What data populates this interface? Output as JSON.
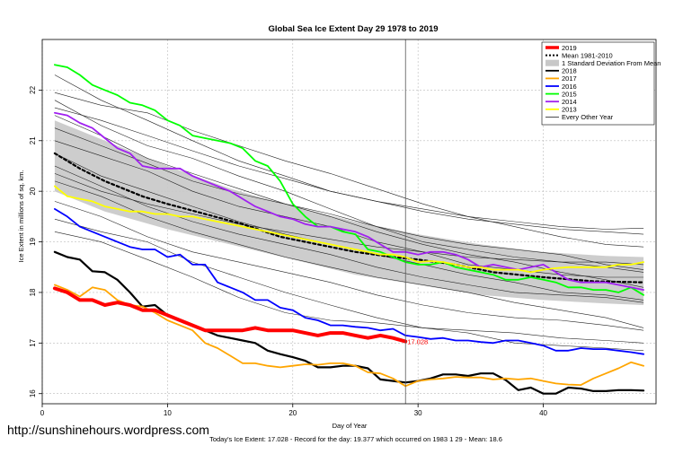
{
  "chart_data": {
    "type": "line",
    "title": "Global Sea Ice Extent Day 29 1978 to 2019",
    "xlabel": "Day of Year",
    "ylabel": "Ice Extent in millions of sq. km.",
    "xlim": [
      0,
      49
    ],
    "ylim": [
      15.8,
      23.0
    ],
    "x_ticks": [
      0,
      10,
      20,
      30,
      40
    ],
    "y_ticks": [
      16,
      17,
      18,
      19,
      20,
      21,
      22
    ],
    "grid": true,
    "legend_position": "top-right",
    "marker_day": 29,
    "current_value_label": "17.028",
    "footer": "Today's Ice Extent: 17.028  - Record for the day: 19.377 which occurred on 1983 1 29  - Mean: 18.6",
    "watermark": "http://sunshinehours.wordpress.com",
    "legend": [
      {
        "label": "2019",
        "color": "#ff0000",
        "style": "thick"
      },
      {
        "label": "Mean 1981-2010",
        "color": "#000000",
        "style": "dotted"
      },
      {
        "label": "1 Standard Deviation From Mean",
        "color": "#c8c8c8",
        "style": "box"
      },
      {
        "label": "2018",
        "color": "#000000",
        "style": "line"
      },
      {
        "label": "2017",
        "color": "#ffa500",
        "style": "line"
      },
      {
        "label": "2016",
        "color": "#0000ff",
        "style": "line"
      },
      {
        "label": "2015",
        "color": "#00ff00",
        "style": "line"
      },
      {
        "label": "2014",
        "color": "#a020f0",
        "style": "line"
      },
      {
        "label": "2013",
        "color": "#ffff00",
        "style": "line"
      },
      {
        "label": "Every Other Year",
        "color": "#000000",
        "style": "thin"
      }
    ],
    "band": {
      "name": "1 Standard Deviation From Mean",
      "x": [
        1,
        5,
        10,
        15,
        20,
        25,
        30,
        35,
        40,
        45,
        48
      ],
      "upper": [
        21.4,
        21.0,
        20.5,
        20.05,
        19.7,
        19.4,
        19.15,
        18.95,
        18.8,
        18.72,
        18.7
      ],
      "lower": [
        20.0,
        19.6,
        19.25,
        18.95,
        18.65,
        18.35,
        18.15,
        17.95,
        17.85,
        17.78,
        17.75
      ]
    },
    "series": [
      {
        "name": "Mean 1981-2010",
        "color": "#000000",
        "width": 2.2,
        "dash": "3,3",
        "x": [
          1,
          3,
          5,
          8,
          10,
          13,
          16,
          19,
          22,
          25,
          28,
          30,
          33,
          36,
          40,
          44,
          48
        ],
        "y": [
          20.75,
          20.45,
          20.2,
          19.9,
          19.75,
          19.55,
          19.35,
          19.1,
          18.95,
          18.8,
          18.7,
          18.65,
          18.55,
          18.4,
          18.3,
          18.22,
          18.2
        ]
      },
      {
        "name": "2018",
        "color": "#000000",
        "width": 2.2,
        "x": [
          1,
          2,
          3,
          4,
          5,
          6,
          7,
          8,
          9,
          10,
          11,
          12,
          13,
          14,
          15,
          16,
          17,
          18,
          19,
          20,
          21,
          22,
          23,
          24,
          25,
          26,
          27,
          28,
          29,
          30,
          31,
          32,
          33,
          34,
          35,
          36,
          37,
          38,
          39,
          40,
          41,
          42,
          43,
          44,
          45,
          46,
          47,
          48
        ],
        "y": [
          18.8,
          18.7,
          18.65,
          18.42,
          18.4,
          18.25,
          18.0,
          17.72,
          17.75,
          17.55,
          17.45,
          17.35,
          17.25,
          17.15,
          17.1,
          17.05,
          17.0,
          16.85,
          16.78,
          16.72,
          16.65,
          16.52,
          16.52,
          16.55,
          16.55,
          16.5,
          16.28,
          16.25,
          16.22,
          16.25,
          16.3,
          16.38,
          16.38,
          16.35,
          16.4,
          16.4,
          16.27,
          16.07,
          16.12,
          16.0,
          16.0,
          16.12,
          16.1,
          16.05,
          16.05,
          16.07,
          16.07,
          16.06
        ]
      },
      {
        "name": "2017",
        "color": "#ffa500",
        "width": 1.8,
        "x": [
          1,
          2,
          3,
          4,
          5,
          6,
          7,
          8,
          9,
          10,
          11,
          12,
          13,
          14,
          15,
          16,
          17,
          18,
          19,
          20,
          21,
          22,
          23,
          24,
          25,
          26,
          27,
          28,
          29,
          30,
          31,
          32,
          33,
          34,
          35,
          36,
          37,
          38,
          39,
          40,
          41,
          42,
          43,
          44,
          45,
          46,
          47,
          48
        ],
        "y": [
          18.15,
          18.05,
          17.92,
          18.1,
          18.05,
          17.85,
          17.75,
          17.72,
          17.6,
          17.45,
          17.35,
          17.25,
          17.0,
          16.9,
          16.75,
          16.6,
          16.6,
          16.55,
          16.52,
          16.55,
          16.58,
          16.57,
          16.6,
          16.6,
          16.55,
          16.42,
          16.4,
          16.3,
          16.15,
          16.25,
          16.28,
          16.3,
          16.33,
          16.32,
          16.32,
          16.28,
          16.3,
          16.28,
          16.3,
          16.25,
          16.2,
          16.18,
          16.17,
          16.3,
          16.4,
          16.5,
          16.62,
          16.55
        ]
      },
      {
        "name": "2016",
        "color": "#0000ff",
        "width": 1.8,
        "x": [
          1,
          2,
          3,
          4,
          5,
          6,
          7,
          8,
          9,
          10,
          11,
          12,
          13,
          14,
          15,
          16,
          17,
          18,
          19,
          20,
          21,
          22,
          23,
          24,
          25,
          26,
          27,
          28,
          29,
          30,
          31,
          32,
          33,
          34,
          35,
          36,
          37,
          38,
          39,
          40,
          41,
          42,
          43,
          44,
          45,
          46,
          47,
          48
        ],
        "y": [
          19.65,
          19.5,
          19.3,
          19.2,
          19.1,
          19.0,
          18.9,
          18.85,
          18.85,
          18.7,
          18.75,
          18.55,
          18.55,
          18.2,
          18.1,
          18.0,
          17.85,
          17.85,
          17.7,
          17.65,
          17.5,
          17.45,
          17.35,
          17.35,
          17.32,
          17.3,
          17.25,
          17.28,
          17.15,
          17.12,
          17.08,
          17.1,
          17.05,
          17.05,
          17.02,
          17.0,
          17.05,
          17.05,
          17.0,
          16.95,
          16.85,
          16.85,
          16.9,
          16.88,
          16.88,
          16.85,
          16.82,
          16.78
        ]
      },
      {
        "name": "2015",
        "color": "#00ff00",
        "width": 1.8,
        "x": [
          1,
          2,
          3,
          4,
          5,
          6,
          7,
          8,
          9,
          10,
          11,
          12,
          13,
          14,
          15,
          16,
          17,
          18,
          19,
          20,
          21,
          22,
          23,
          24,
          25,
          26,
          27,
          28,
          29,
          30,
          31,
          32,
          33,
          34,
          35,
          36,
          37,
          38,
          39,
          40,
          41,
          42,
          43,
          44,
          45,
          46,
          47,
          48
        ],
        "y": [
          22.5,
          22.45,
          22.3,
          22.1,
          22.0,
          21.9,
          21.75,
          21.7,
          21.6,
          21.4,
          21.3,
          21.1,
          21.05,
          21.0,
          20.95,
          20.85,
          20.6,
          20.5,
          20.2,
          19.75,
          19.5,
          19.3,
          19.3,
          19.2,
          19.15,
          18.85,
          18.8,
          18.7,
          18.6,
          18.55,
          18.55,
          18.6,
          18.5,
          18.45,
          18.4,
          18.35,
          18.25,
          18.25,
          18.3,
          18.25,
          18.2,
          18.1,
          18.1,
          18.05,
          18.05,
          18.0,
          18.1,
          17.95
        ]
      },
      {
        "name": "2014",
        "color": "#a020f0",
        "width": 1.8,
        "x": [
          1,
          2,
          3,
          4,
          5,
          6,
          7,
          8,
          9,
          10,
          11,
          12,
          13,
          14,
          15,
          16,
          17,
          18,
          19,
          20,
          21,
          22,
          23,
          24,
          25,
          26,
          27,
          28,
          29,
          30,
          31,
          32,
          33,
          34,
          35,
          36,
          37,
          38,
          39,
          40,
          41,
          42,
          43,
          44,
          45,
          46,
          47,
          48
        ],
        "y": [
          21.55,
          21.5,
          21.35,
          21.25,
          21.05,
          20.85,
          20.75,
          20.5,
          20.45,
          20.45,
          20.45,
          20.3,
          20.2,
          20.1,
          20.0,
          19.85,
          19.7,
          19.6,
          19.5,
          19.45,
          19.35,
          19.3,
          19.3,
          19.25,
          19.2,
          19.1,
          18.95,
          18.8,
          18.8,
          18.75,
          18.8,
          18.8,
          18.75,
          18.65,
          18.5,
          18.55,
          18.5,
          18.45,
          18.5,
          18.55,
          18.4,
          18.25,
          18.2,
          18.2,
          18.2,
          18.15,
          18.1,
          18.05
        ]
      },
      {
        "name": "2013",
        "color": "#ffff00",
        "width": 1.8,
        "x": [
          1,
          2,
          3,
          4,
          5,
          6,
          7,
          8,
          9,
          10,
          11,
          12,
          13,
          14,
          15,
          16,
          17,
          18,
          19,
          20,
          21,
          22,
          23,
          24,
          25,
          26,
          27,
          28,
          29,
          30,
          31,
          32,
          33,
          34,
          35,
          36,
          37,
          38,
          39,
          40,
          41,
          42,
          43,
          44,
          45,
          46,
          47,
          48
        ],
        "y": [
          20.1,
          19.9,
          19.85,
          19.8,
          19.7,
          19.65,
          19.6,
          19.6,
          19.55,
          19.55,
          19.5,
          19.5,
          19.45,
          19.4,
          19.35,
          19.3,
          19.25,
          19.2,
          19.15,
          19.1,
          19.05,
          19.0,
          18.95,
          18.9,
          18.85,
          18.8,
          18.75,
          18.75,
          18.7,
          18.6,
          18.62,
          18.6,
          18.55,
          18.5,
          18.5,
          18.45,
          18.45,
          18.45,
          18.4,
          18.45,
          18.48,
          18.5,
          18.5,
          18.5,
          18.5,
          18.55,
          18.55,
          18.6
        ]
      },
      {
        "name": "2019",
        "color": "#ff0000",
        "width": 4,
        "x": [
          1,
          2,
          3,
          4,
          5,
          6,
          7,
          8,
          9,
          10,
          11,
          12,
          13,
          14,
          15,
          16,
          17,
          18,
          19,
          20,
          21,
          22,
          23,
          24,
          25,
          26,
          27,
          28,
          29
        ],
        "y": [
          18.08,
          18.0,
          17.85,
          17.85,
          17.75,
          17.8,
          17.75,
          17.65,
          17.65,
          17.55,
          17.45,
          17.35,
          17.25,
          17.25,
          17.25,
          17.25,
          17.3,
          17.25,
          17.25,
          17.25,
          17.2,
          17.15,
          17.2,
          17.2,
          17.15,
          17.1,
          17.15,
          17.1,
          17.03
        ]
      }
    ],
    "thin_series": [
      [
        22.3,
        21.8,
        21.4,
        21.0,
        20.6,
        20.3,
        20.0,
        19.8,
        19.6,
        19.45,
        19.35,
        19.25,
        19.2,
        19.15
      ],
      [
        21.95,
        21.7,
        21.55,
        21.2,
        20.9,
        20.6,
        20.35,
        20.05,
        19.75,
        19.5,
        19.3,
        19.1,
        18.95,
        18.9
      ],
      [
        21.8,
        21.3,
        20.9,
        20.65,
        20.3,
        20.0,
        19.65,
        19.3,
        19.0,
        18.85,
        18.7,
        18.6,
        18.5,
        18.4
      ],
      [
        21.5,
        21.1,
        20.65,
        20.35,
        20.05,
        19.75,
        19.55,
        19.3,
        19.1,
        18.95,
        18.85,
        18.75,
        18.55,
        18.45
      ],
      [
        21.25,
        20.9,
        20.55,
        20.2,
        19.95,
        19.75,
        19.5,
        19.2,
        18.95,
        18.75,
        18.6,
        18.4,
        18.25,
        18.1
      ],
      [
        21.0,
        20.7,
        20.4,
        20.0,
        19.7,
        19.5,
        19.3,
        19.0,
        18.8,
        18.55,
        18.45,
        18.35,
        18.3,
        18.3
      ],
      [
        20.75,
        20.3,
        20.0,
        19.7,
        19.4,
        19.15,
        18.95,
        18.75,
        18.55,
        18.35,
        18.2,
        18.0,
        17.95,
        17.85
      ],
      [
        20.5,
        20.1,
        19.7,
        19.4,
        19.15,
        18.95,
        18.75,
        18.5,
        18.3,
        18.15,
        18.0,
        17.95,
        17.9,
        17.8
      ],
      [
        20.2,
        19.9,
        19.5,
        19.2,
        18.95,
        18.7,
        18.5,
        18.3,
        18.15,
        18.0,
        17.8,
        17.65,
        17.5,
        17.3
      ],
      [
        19.8,
        19.5,
        19.1,
        18.8,
        18.6,
        18.4,
        18.2,
        17.95,
        17.75,
        17.6,
        17.5,
        17.45,
        17.35,
        17.25
      ],
      [
        19.45,
        19.2,
        19.0,
        18.6,
        18.3,
        18.0,
        17.75,
        17.5,
        17.3,
        17.25,
        17.2,
        17.1,
        17.05,
        17.0
      ],
      [
        19.2,
        19.0,
        18.65,
        18.3,
        17.9,
        17.6,
        17.45,
        17.4,
        17.3,
        17.2,
        17.0,
        16.95,
        16.9,
        16.85
      ],
      [
        20.35,
        20.0,
        19.75,
        19.55,
        19.35,
        19.2,
        19.05,
        18.9,
        18.8,
        18.7,
        18.65,
        18.6,
        18.6,
        18.55
      ],
      [
        21.65,
        21.4,
        21.1,
        20.8,
        20.5,
        20.25,
        20.0,
        19.8,
        19.65,
        19.5,
        19.4,
        19.3,
        19.25,
        19.27
      ]
    ],
    "thin_x": [
      1,
      4.7,
      8.4,
      12,
      15.7,
      19.4,
      23,
      26.7,
      30.4,
      34,
      37.7,
      41.4,
      45,
      48
    ]
  }
}
